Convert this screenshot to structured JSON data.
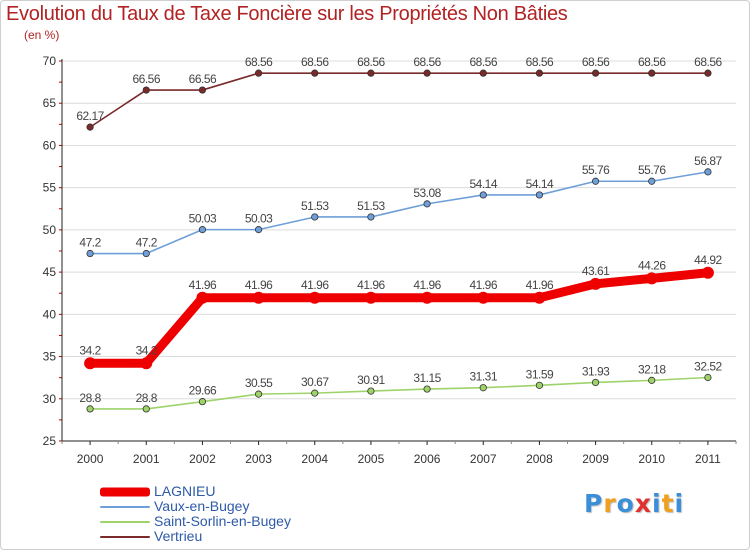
{
  "chart_data": {
    "type": "line",
    "title": "Evolution du Taux de Taxe Foncière sur les Propriétés Non Bâties",
    "ylabel": "(en %)",
    "xlabel": "",
    "ylim": [
      25,
      70
    ],
    "yticks": [
      25,
      30,
      35,
      40,
      45,
      50,
      55,
      60,
      65,
      70
    ],
    "grid": "horizontal",
    "legend_position": "bottom-left",
    "x": [
      "2000",
      "2001",
      "2002",
      "2003",
      "2004",
      "2005",
      "2006",
      "2007",
      "2008",
      "2009",
      "2010",
      "2011"
    ],
    "series": [
      {
        "name": "LAGNIEU",
        "color": "#ee0000",
        "emphasis": true,
        "values": [
          34.2,
          34.2,
          41.96,
          41.96,
          41.96,
          41.96,
          41.96,
          41.96,
          41.96,
          43.61,
          44.26,
          44.92
        ],
        "labels": [
          "34.2",
          "34.2",
          "41.96",
          "41.96",
          "41.96",
          "41.96",
          "41.96",
          "41.96",
          "41.96",
          "43.61",
          "44.26",
          "44.92"
        ]
      },
      {
        "name": "Vaux-en-Bugey",
        "color": "#6f9fd8",
        "emphasis": false,
        "values": [
          47.2,
          47.2,
          50.03,
          50.03,
          51.53,
          51.53,
          53.08,
          54.14,
          54.14,
          55.76,
          55.76,
          56.87
        ],
        "labels": [
          "47.2",
          "47.2",
          "50.03",
          "50.03",
          "51.53",
          "51.53",
          "53.08",
          "54.14",
          "54.14",
          "55.76",
          "55.76",
          "56.87"
        ]
      },
      {
        "name": "Saint-Sorlin-en-Bugey",
        "color": "#9ed36a",
        "emphasis": false,
        "values": [
          28.8,
          28.8,
          29.66,
          30.55,
          30.67,
          30.91,
          31.15,
          31.31,
          31.59,
          31.93,
          32.18,
          32.52
        ],
        "labels": [
          "28.8",
          "28.8",
          "29.66",
          "30.55",
          "30.67",
          "30.91",
          "31.15",
          "31.31",
          "31.59",
          "31.93",
          "32.18",
          "32.52"
        ]
      },
      {
        "name": "Vertrieu",
        "color": "#7a2a2a",
        "emphasis": false,
        "values": [
          62.17,
          66.56,
          66.56,
          68.56,
          68.56,
          68.56,
          68.56,
          68.56,
          68.56,
          68.56,
          68.56,
          68.56
        ],
        "labels": [
          "62.17",
          "66.56",
          "66.56",
          "68.56",
          "68.56",
          "68.56",
          "68.56",
          "68.56",
          "68.56",
          "68.56",
          "68.56",
          "68.56"
        ]
      }
    ]
  },
  "logo": {
    "letters": [
      "P",
      "r",
      "o",
      "x",
      "i",
      "t",
      "i"
    ],
    "colors": [
      "#3a8fd8",
      "#f0a020",
      "#3a8fd8",
      "#e03030",
      "#3a8fd8",
      "#f0a020",
      "#3a8fd8"
    ]
  }
}
